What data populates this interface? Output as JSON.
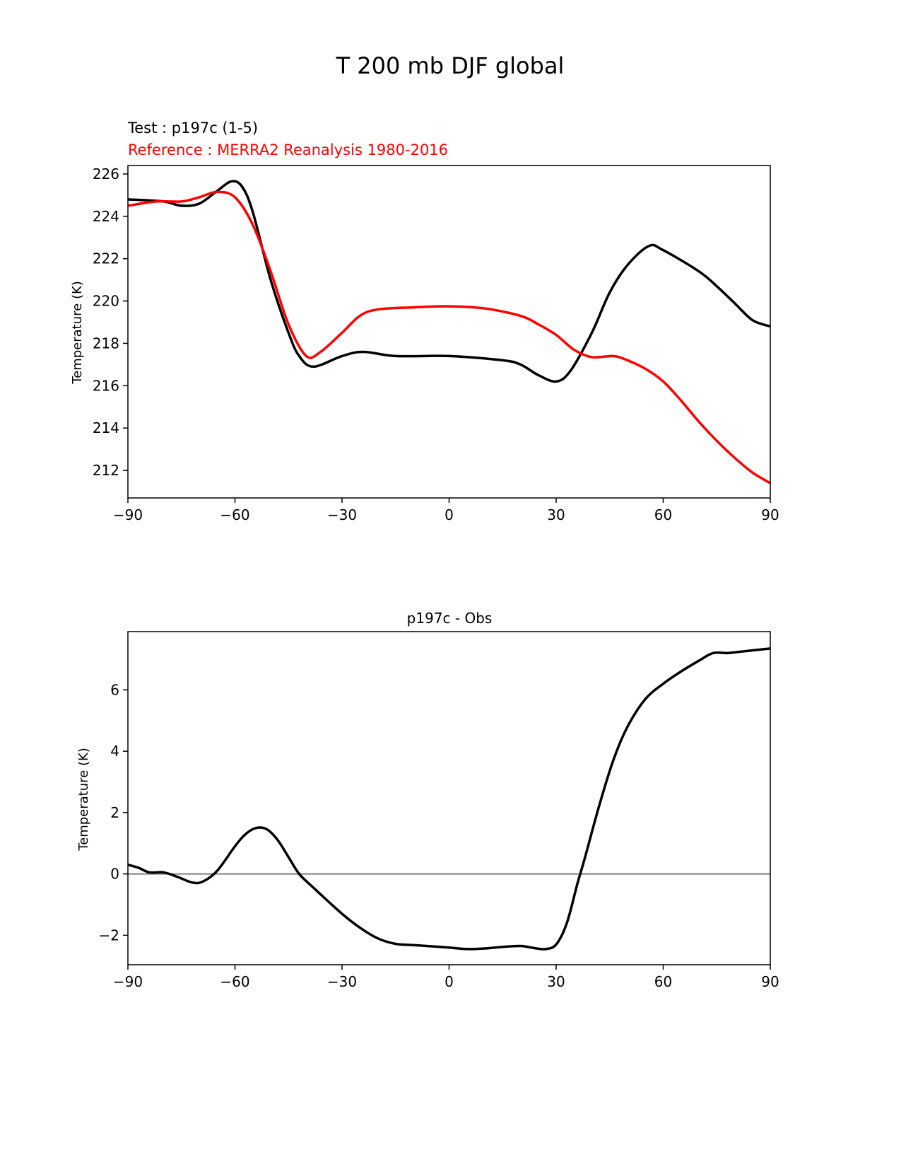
{
  "figure_title": "T 200 mb DJF global",
  "colors": {
    "test": "#000000",
    "reference": "#ff0000",
    "zero_line": "#808080"
  },
  "chart_data": [
    {
      "type": "line",
      "title_test": "Test : p197c (1-5)",
      "title_reference": "Reference : MERRA2 Reanalysis 1980-2016",
      "xlabel": "",
      "ylabel": "Temperature (K)",
      "xlim": [
        -90,
        90
      ],
      "ylim": [
        210.7,
        226.4
      ],
      "xticks": [
        -90,
        -60,
        -30,
        0,
        30,
        60,
        90
      ],
      "xtick_labels": [
        "−90",
        "−60",
        "−30",
        "0",
        "30",
        "60",
        "90"
      ],
      "yticks": [
        212,
        214,
        216,
        218,
        220,
        222,
        224,
        226
      ],
      "ytick_labels": [
        "212",
        "214",
        "216",
        "218",
        "220",
        "222",
        "224",
        "226"
      ],
      "series": [
        {
          "name": "Test : p197c (1-5)",
          "color": "#000000",
          "x": [
            -90,
            -80,
            -75,
            -70,
            -65,
            -61,
            -58,
            -55,
            -50,
            -45,
            -42,
            -38,
            -30,
            -24,
            -15,
            0,
            15,
            20,
            25,
            30,
            34,
            40,
            45,
            50,
            56,
            60,
            70,
            75,
            80,
            85,
            90
          ],
          "y": [
            224.8,
            224.7,
            224.5,
            224.6,
            225.2,
            225.65,
            225.4,
            224.2,
            221.0,
            218.5,
            217.4,
            216.9,
            217.4,
            217.6,
            217.4,
            217.4,
            217.2,
            217.0,
            216.5,
            216.2,
            216.7,
            218.5,
            220.4,
            221.7,
            222.6,
            222.4,
            221.4,
            220.7,
            219.9,
            219.1,
            218.8
          ]
        },
        {
          "name": "Reference : MERRA2 Reanalysis 1980-2016",
          "color": "#ff0000",
          "x": [
            -90,
            -82,
            -75,
            -70,
            -65,
            -60,
            -55,
            -50,
            -45,
            -40,
            -36,
            -30,
            -25,
            -20,
            -10,
            0,
            10,
            20,
            25,
            30,
            35,
            40,
            46,
            50,
            55,
            60,
            65,
            70,
            75,
            80,
            85,
            90
          ],
          "y": [
            224.5,
            224.7,
            224.7,
            224.9,
            225.15,
            224.9,
            223.6,
            221.4,
            218.9,
            217.4,
            217.6,
            218.5,
            219.3,
            219.6,
            219.7,
            219.75,
            219.65,
            219.3,
            218.9,
            218.4,
            217.7,
            217.35,
            217.4,
            217.2,
            216.8,
            216.2,
            215.3,
            214.3,
            213.4,
            212.6,
            211.9,
            211.4
          ]
        }
      ]
    },
    {
      "type": "line",
      "title": "p197c - Obs",
      "xlabel": "",
      "ylabel": "Temperature (K)",
      "xlim": [
        -90,
        90
      ],
      "ylim": [
        -2.96,
        7.9
      ],
      "xticks": [
        -90,
        -60,
        -30,
        0,
        30,
        60,
        90
      ],
      "xtick_labels": [
        "−90",
        "−60",
        "−30",
        "0",
        "30",
        "60",
        "90"
      ],
      "yticks": [
        -2,
        0,
        2,
        4,
        6
      ],
      "ytick_labels": [
        "−2",
        "0",
        "2",
        "4",
        "6"
      ],
      "zero_line": 0,
      "series": [
        {
          "name": "p197c - Obs",
          "color": "#000000",
          "x": [
            -90,
            -87,
            -84,
            -80,
            -76,
            -72,
            -69,
            -65,
            -60,
            -57,
            -54,
            -51,
            -48,
            -45,
            -42,
            -38,
            -30,
            -25,
            -20,
            -15,
            -10,
            -5,
            0,
            5,
            10,
            15,
            20,
            24,
            27,
            30,
            33,
            36,
            38,
            42,
            46,
            50,
            55,
            60,
            65,
            70,
            74,
            78,
            82,
            86,
            90
          ],
          "y": [
            0.3,
            0.2,
            0.05,
            0.05,
            -0.1,
            -0.28,
            -0.25,
            0.1,
            0.9,
            1.3,
            1.5,
            1.45,
            1.1,
            0.55,
            0.0,
            -0.45,
            -1.3,
            -1.75,
            -2.1,
            -2.28,
            -2.32,
            -2.36,
            -2.4,
            -2.45,
            -2.43,
            -2.38,
            -2.35,
            -2.42,
            -2.45,
            -2.3,
            -1.6,
            -0.3,
            0.5,
            2.2,
            3.7,
            4.8,
            5.7,
            6.2,
            6.6,
            6.95,
            7.2,
            7.2,
            7.25,
            7.3,
            7.35
          ]
        }
      ]
    }
  ]
}
